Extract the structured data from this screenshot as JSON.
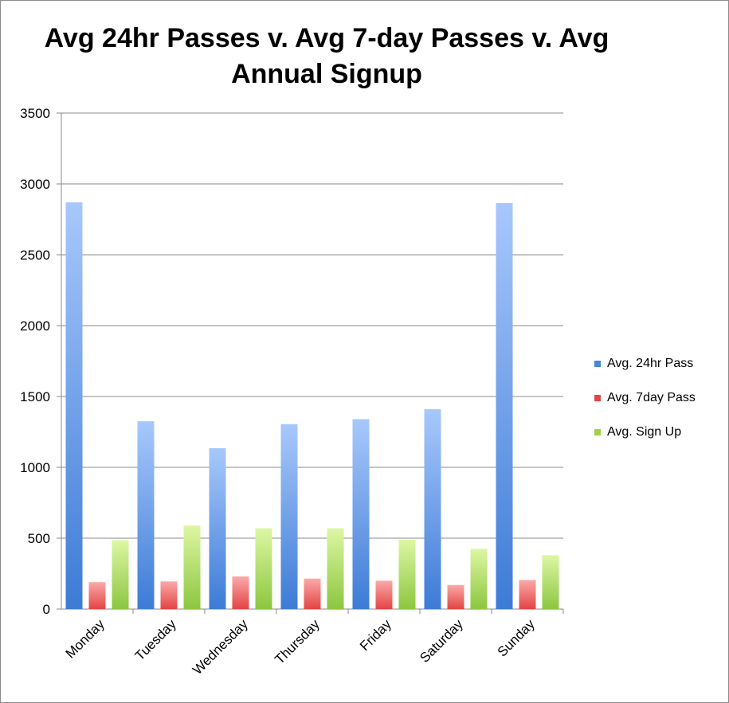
{
  "chart_data": {
    "type": "bar",
    "title": "Avg 24hr Passes v. Avg 7-day Passes v. Avg Annual Signup",
    "title_lines": [
      "Avg 24hr Passes v. Avg 7-day Passes v. Avg",
      "Annual Signup"
    ],
    "xlabel": "",
    "ylabel": "",
    "categories": [
      "Monday",
      "Tuesday",
      "Wednesday",
      "Thursday",
      "Friday",
      "Saturday",
      "Sunday"
    ],
    "ylim": [
      0,
      3500
    ],
    "yticks": [
      "0",
      "500",
      "1000",
      "1500",
      "2000",
      "2500",
      "3000",
      "3500"
    ],
    "grid": true,
    "legend_position": "right",
    "series": [
      {
        "name": "Avg. 24hr Pass",
        "values": [
          2870,
          1325,
          1135,
          1305,
          1340,
          1410,
          2865
        ],
        "color_top": "#a8c8fb",
        "color_bottom": "#3d7bd6",
        "swatch": "#4a84d8"
      },
      {
        "name": "Avg. 7day Pass",
        "values": [
          190,
          195,
          230,
          215,
          200,
          170,
          205
        ],
        "color_top": "#fba9a9",
        "color_bottom": "#e34444",
        "swatch": "#e24646"
      },
      {
        "name": "Avg. Sign Up",
        "values": [
          485,
          590,
          570,
          570,
          490,
          425,
          380
        ],
        "color_top": "#ddf7a3",
        "color_bottom": "#8cc640",
        "swatch": "#9bd34b"
      }
    ]
  }
}
